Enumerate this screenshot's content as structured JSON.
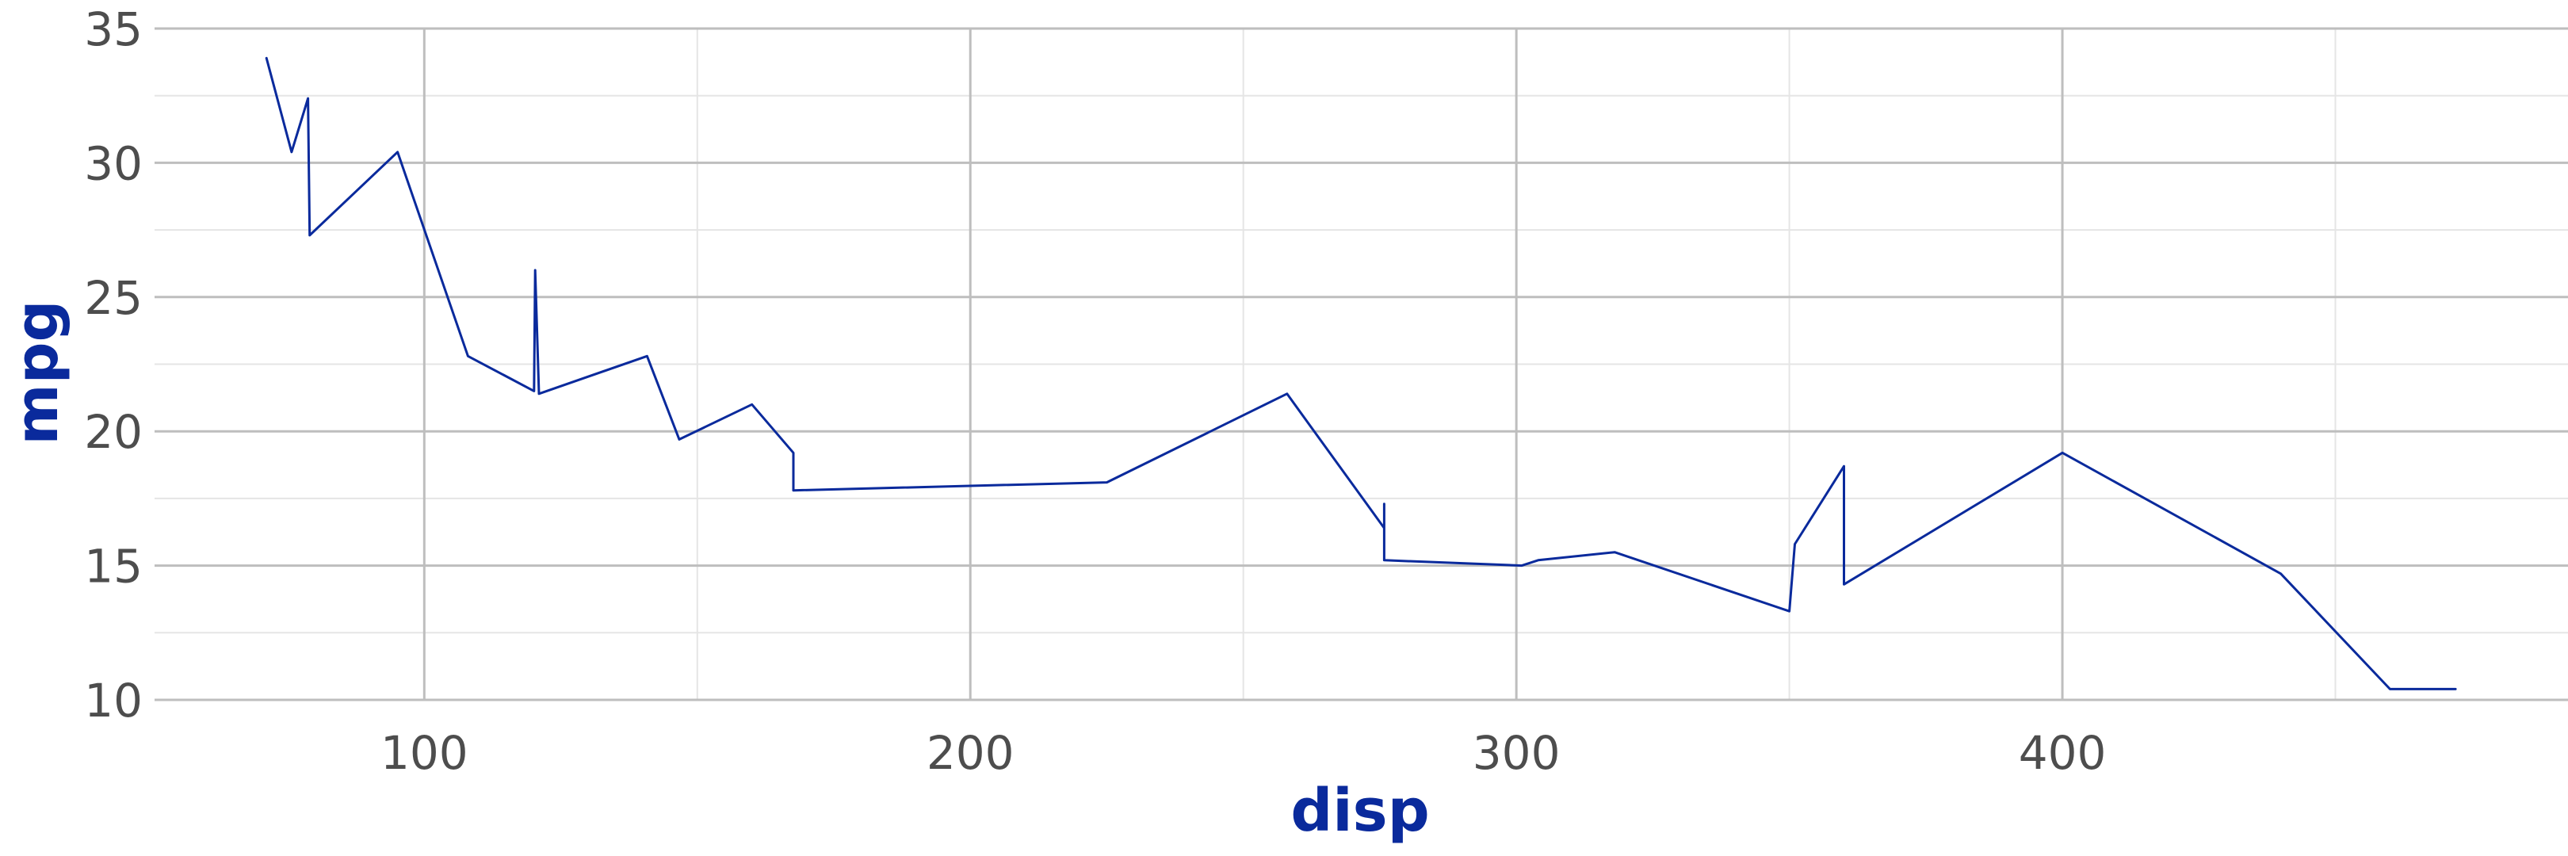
{
  "chart_data": {
    "type": "line",
    "title": "",
    "xlabel": "disp",
    "ylabel": "mpg",
    "xlim": [
      50.6,
      492.6
    ],
    "ylim": [
      10,
      35
    ],
    "x_ticks": [
      100,
      200,
      300,
      400
    ],
    "y_ticks": [
      10,
      15,
      20,
      25,
      30,
      35
    ],
    "grid": true,
    "legend": "none",
    "colors": {
      "line": "#0a2a9c",
      "label": "#0a2a9c",
      "grid_major": "#bebebe",
      "grid_minor": "#e5e5e5",
      "tick_text": "#4d4d4d"
    },
    "series": [
      {
        "x": [
          71.1,
          75.7,
          78.7,
          79.0,
          95.1,
          108.0,
          120.1,
          120.3,
          121.0,
          140.8,
          146.7,
          160.0,
          167.6,
          167.6,
          225.0,
          258.0,
          275.8,
          275.8,
          275.8,
          301.0,
          304.0,
          318.0,
          350.0,
          351.0,
          360.0,
          360.0,
          400.0,
          440.0,
          460.0,
          472.0
        ],
        "y": [
          33.9,
          30.4,
          32.4,
          27.3,
          30.4,
          22.8,
          21.5,
          26.0,
          21.4,
          22.8,
          19.7,
          21.0,
          19.2,
          17.8,
          18.1,
          21.4,
          16.4,
          17.3,
          15.2,
          15.0,
          15.2,
          15.5,
          13.3,
          15.8,
          18.7,
          14.3,
          19.2,
          14.7,
          10.4,
          10.4
        ]
      }
    ]
  }
}
